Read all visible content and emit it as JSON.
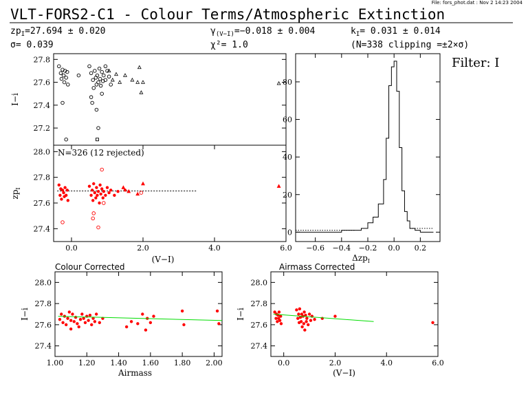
{
  "header": {
    "file_info": "File: fors_phot.dat : Nov  2 14:23 2004",
    "title": "VLT-FORS2-C1  - Colour Terms/Atmospheric Extinction",
    "zp_label": "zp",
    "zp_sub": "I",
    "zp_value": "=27.694 ± 0.020",
    "sigma_text": "σ=  0.039",
    "gamma_label": "γ",
    "gamma_sub": "(V−I)",
    "gamma_value": "=−0.018 ± 0.004",
    "chi_text": "χ²=   1.0",
    "k_label": "k",
    "k_sub": "I",
    "k_value": "=  0.031 ± 0.014",
    "n_text": "(N=338  clipping =±2×σ)",
    "filter_text": "Filter: I"
  },
  "colors": {
    "black": "#000000",
    "red": "#ff0000",
    "green": "#00dd00"
  },
  "chart_data": [
    {
      "id": "top",
      "type": "scatter",
      "ylabel": "I−i",
      "xlim": [
        -0.5,
        6.0
      ],
      "ylim": [
        27.05,
        27.85
      ],
      "yticks": [
        27.2,
        27.4,
        27.6,
        27.8
      ],
      "series": [
        {
          "marker": "circle",
          "points": [
            [
              -0.35,
              27.74
            ],
            [
              -0.3,
              27.68
            ],
            [
              -0.28,
              27.63
            ],
            [
              -0.25,
              27.71
            ],
            [
              -0.22,
              27.66
            ],
            [
              -0.2,
              27.6
            ],
            [
              -0.18,
              27.7
            ],
            [
              -0.15,
              27.64
            ],
            [
              -0.12,
              27.69
            ],
            [
              -0.1,
              27.58
            ],
            [
              -0.25,
              27.42
            ],
            [
              -0.15,
              27.1
            ],
            [
              0.2,
              27.66
            ],
            [
              0.5,
              27.74
            ],
            [
              0.55,
              27.68
            ],
            [
              0.6,
              27.62
            ],
            [
              0.62,
              27.55
            ],
            [
              0.65,
              27.7
            ],
            [
              0.68,
              27.64
            ],
            [
              0.7,
              27.58
            ],
            [
              0.72,
              27.66
            ],
            [
              0.75,
              27.6
            ],
            [
              0.78,
              27.72
            ],
            [
              0.8,
              27.63
            ],
            [
              0.82,
              27.57
            ],
            [
              0.85,
              27.69
            ],
            [
              0.88,
              27.61
            ],
            [
              0.9,
              27.66
            ],
            [
              0.95,
              27.62
            ],
            [
              1.0,
              27.7
            ],
            [
              1.05,
              27.65
            ],
            [
              0.55,
              27.47
            ],
            [
              0.58,
              27.42
            ],
            [
              0.7,
              27.36
            ],
            [
              0.75,
              27.2
            ],
            [
              0.85,
              27.5
            ],
            [
              0.95,
              27.74
            ],
            [
              1.1,
              27.58
            ]
          ]
        },
        {
          "marker": "square",
          "points": [
            [
              0.72,
              27.1
            ]
          ]
        },
        {
          "marker": "triangle",
          "points": [
            [
              1.05,
              27.7
            ],
            [
              1.15,
              27.62
            ],
            [
              1.25,
              27.67
            ],
            [
              1.35,
              27.6
            ],
            [
              1.5,
              27.66
            ],
            [
              1.7,
              27.62
            ],
            [
              1.85,
              27.6
            ],
            [
              1.9,
              27.73
            ],
            [
              1.95,
              27.51
            ],
            [
              2.0,
              27.6
            ],
            [
              5.8,
              27.59
            ]
          ]
        }
      ]
    },
    {
      "id": "mid",
      "type": "scatter",
      "ylabel": "zp",
      "ylabel_sub": "I",
      "annotation": "N=326 (12 rejected)",
      "xlabel": "(V−I)",
      "xlim": [
        -0.5,
        6.0
      ],
      "ylim": [
        27.3,
        28.05
      ],
      "xticks": [
        0.0,
        2.0,
        4.0,
        6.0
      ],
      "xtick_labels": [
        "0.0",
        "2.0",
        "4.0",
        "6.0"
      ],
      "yticks": [
        27.4,
        27.6,
        27.8,
        28.0
      ],
      "fit_line": {
        "x": [
          -0.4,
          3.5
        ],
        "y": [
          27.694,
          27.694
        ]
      },
      "series": [
        {
          "marker": "filled",
          "points": [
            [
              -0.35,
              27.74
            ],
            [
              -0.32,
              27.66
            ],
            [
              -0.3,
              27.71
            ],
            [
              -0.28,
              27.63
            ],
            [
              -0.25,
              27.7
            ],
            [
              -0.22,
              27.68
            ],
            [
              -0.2,
              27.65
            ],
            [
              -0.18,
              27.72
            ],
            [
              -0.15,
              27.66
            ],
            [
              -0.12,
              27.7
            ],
            [
              -0.1,
              27.62
            ],
            [
              0.5,
              27.73
            ],
            [
              0.55,
              27.66
            ],
            [
              0.58,
              27.7
            ],
            [
              0.6,
              27.62
            ],
            [
              0.62,
              27.75
            ],
            [
              0.65,
              27.68
            ],
            [
              0.68,
              27.64
            ],
            [
              0.7,
              27.72
            ],
            [
              0.72,
              27.66
            ],
            [
              0.75,
              27.69
            ],
            [
              0.78,
              27.6
            ],
            [
              0.8,
              27.74
            ],
            [
              0.82,
              27.67
            ],
            [
              0.85,
              27.71
            ],
            [
              0.88,
              27.64
            ],
            [
              0.9,
              27.69
            ],
            [
              0.95,
              27.66
            ],
            [
              1.0,
              27.72
            ],
            [
              1.05,
              27.68
            ],
            [
              1.1,
              27.7
            ],
            [
              1.2,
              27.66
            ],
            [
              1.3,
              27.69
            ],
            [
              1.5,
              27.7
            ]
          ]
        },
        {
          "marker": "circle",
          "points": [
            [
              -0.25,
              27.45
            ],
            [
              0.6,
              27.48
            ],
            [
              0.62,
              27.52
            ],
            [
              0.75,
              27.41
            ],
            [
              0.85,
              27.86
            ],
            [
              0.9,
              27.6
            ],
            [
              1.95,
              27.68
            ]
          ]
        },
        {
          "marker": "triangle",
          "points": [
            [
              1.45,
              27.72
            ],
            [
              1.6,
              27.69
            ],
            [
              1.85,
              27.67
            ],
            [
              2.0,
              27.75
            ],
            [
              5.8,
              27.73
            ]
          ]
        }
      ]
    },
    {
      "id": "hist",
      "type": "histogram",
      "xlabel": "Δzp",
      "xlabel_sub": "I",
      "xlim": [
        -0.75,
        0.35
      ],
      "ylim": [
        -5,
        95
      ],
      "xticks": [
        -0.6,
        -0.4,
        -0.2,
        0.0,
        0.2
      ],
      "xtick_labels": [
        "−0.6",
        "−0.4",
        "−0.2",
        "0.0",
        "0.2"
      ],
      "yticks": [
        0,
        20,
        40,
        60,
        80
      ],
      "bin_edges": [
        -0.75,
        -0.5,
        -0.4,
        -0.3,
        -0.25,
        -0.2,
        -0.16,
        -0.12,
        -0.08,
        -0.06,
        -0.04,
        -0.02,
        0.0,
        0.02,
        0.04,
        0.06,
        0.08,
        0.1,
        0.12,
        0.16,
        0.2,
        0.3
      ],
      "counts": [
        0,
        0,
        1,
        1,
        2,
        5,
        8,
        15,
        28,
        50,
        78,
        88,
        91,
        75,
        45,
        22,
        11,
        6,
        2,
        1,
        0
      ],
      "dotted_bins": [
        [
          -0.75,
          -0.3,
          1
        ],
        [
          0.12,
          0.3,
          2
        ]
      ]
    },
    {
      "id": "colour",
      "type": "scatter",
      "title": "Colour Corrected",
      "ylabel": "I−i",
      "xlabel": "Airmass",
      "xlim": [
        1.0,
        2.05
      ],
      "ylim": [
        27.3,
        28.1
      ],
      "xticks": [
        1.0,
        1.2,
        1.4,
        1.6,
        1.8,
        2.0
      ],
      "xtick_labels": [
        "1.00",
        "1.20",
        "1.40",
        "1.60",
        "1.80",
        "2.00"
      ],
      "yticks": [
        27.4,
        27.6,
        27.8,
        28.0
      ],
      "fit_line": {
        "x": [
          1.02,
          2.05
        ],
        "y": [
          27.68,
          27.64
        ]
      },
      "series": [
        {
          "marker": "filled",
          "points": [
            [
              1.03,
              27.65
            ],
            [
              1.04,
              27.7
            ],
            [
              1.05,
              27.62
            ],
            [
              1.06,
              27.68
            ],
            [
              1.07,
              27.6
            ],
            [
              1.08,
              27.66
            ],
            [
              1.09,
              27.72
            ],
            [
              1.1,
              27.64
            ],
            [
              1.1,
              27.56
            ],
            [
              1.11,
              27.7
            ],
            [
              1.12,
              27.63
            ],
            [
              1.13,
              27.67
            ],
            [
              1.14,
              27.61
            ],
            [
              1.15,
              27.58
            ],
            [
              1.16,
              27.65
            ],
            [
              1.17,
              27.7
            ],
            [
              1.18,
              27.66
            ],
            [
              1.19,
              27.62
            ],
            [
              1.2,
              27.68
            ],
            [
              1.21,
              27.64
            ],
            [
              1.22,
              27.69
            ],
            [
              1.23,
              27.6
            ],
            [
              1.24,
              27.66
            ],
            [
              1.25,
              27.63
            ],
            [
              1.26,
              27.7
            ],
            [
              1.28,
              27.62
            ],
            [
              1.3,
              27.66
            ],
            [
              1.45,
              27.58
            ],
            [
              1.48,
              27.63
            ],
            [
              1.52,
              27.61
            ],
            [
              1.55,
              27.7
            ],
            [
              1.57,
              27.55
            ],
            [
              1.58,
              27.66
            ],
            [
              1.6,
              27.62
            ],
            [
              1.62,
              27.68
            ],
            [
              1.8,
              27.73
            ],
            [
              1.81,
              27.6
            ],
            [
              2.02,
              27.73
            ],
            [
              2.03,
              27.61
            ]
          ]
        }
      ]
    },
    {
      "id": "airmass",
      "type": "scatter",
      "title": "Airmass Corrected",
      "ylabel": "I−i",
      "xlabel": "(V−I)",
      "xlim": [
        -0.5,
        6.0
      ],
      "ylim": [
        27.3,
        28.1
      ],
      "xticks": [
        0.0,
        2.0,
        4.0,
        6.0
      ],
      "xtick_labels": [
        "0.0",
        "2.0",
        "4.0",
        "6.0"
      ],
      "yticks": [
        27.4,
        27.6,
        27.8,
        28.0
      ],
      "fit_line": {
        "x": [
          -0.4,
          3.5
        ],
        "y": [
          27.7,
          27.63
        ]
      },
      "series": [
        {
          "marker": "filled",
          "points": [
            [
              -0.35,
              27.72
            ],
            [
              -0.3,
              27.66
            ],
            [
              -0.28,
              27.7
            ],
            [
              -0.25,
              27.63
            ],
            [
              -0.22,
              27.69
            ],
            [
              -0.2,
              27.66
            ],
            [
              -0.18,
              27.72
            ],
            [
              -0.15,
              27.64
            ],
            [
              -0.12,
              27.68
            ],
            [
              -0.1,
              27.61
            ],
            [
              0.5,
              27.74
            ],
            [
              0.55,
              27.66
            ],
            [
              0.58,
              27.7
            ],
            [
              0.6,
              27.62
            ],
            [
              0.62,
              27.75
            ],
            [
              0.65,
              27.67
            ],
            [
              0.68,
              27.63
            ],
            [
              0.7,
              27.7
            ],
            [
              0.72,
              27.58
            ],
            [
              0.75,
              27.68
            ],
            [
              0.78,
              27.61
            ],
            [
              0.8,
              27.72
            ],
            [
              0.82,
              27.55
            ],
            [
              0.85,
              27.69
            ],
            [
              0.88,
              27.63
            ],
            [
              0.9,
              27.66
            ],
            [
              0.95,
              27.6
            ],
            [
              1.0,
              27.7
            ],
            [
              1.05,
              27.64
            ],
            [
              1.1,
              27.68
            ],
            [
              1.2,
              27.65
            ],
            [
              1.5,
              27.66
            ],
            [
              2.0,
              27.68
            ],
            [
              5.8,
              27.62
            ]
          ]
        }
      ]
    }
  ]
}
